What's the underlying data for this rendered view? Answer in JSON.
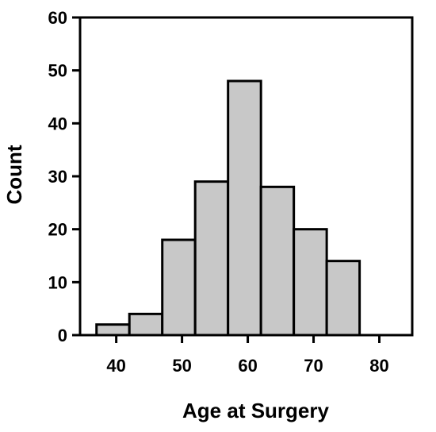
{
  "chart_data": {
    "type": "bar",
    "title": "",
    "xlabel": "Age at Surgery",
    "ylabel": "Count",
    "bins": [
      {
        "x0": 37,
        "x1": 42,
        "count": 2
      },
      {
        "x0": 42,
        "x1": 47,
        "count": 4
      },
      {
        "x0": 47,
        "x1": 52,
        "count": 18
      },
      {
        "x0": 52,
        "x1": 57,
        "count": 29
      },
      {
        "x0": 57,
        "x1": 62,
        "count": 48
      },
      {
        "x0": 62,
        "x1": 67,
        "count": 28
      },
      {
        "x0": 67,
        "x1": 72,
        "count": 20
      },
      {
        "x0": 72,
        "x1": 77,
        "count": 14
      }
    ],
    "xticks": [
      "40",
      "50",
      "60",
      "70",
      "80"
    ],
    "yticks": [
      "0",
      "10",
      "20",
      "30",
      "40",
      "50",
      "60"
    ],
    "ylim": [
      0,
      60
    ],
    "grid": false,
    "bar_color": "#c8c8c8",
    "edge_color": "#000000"
  }
}
